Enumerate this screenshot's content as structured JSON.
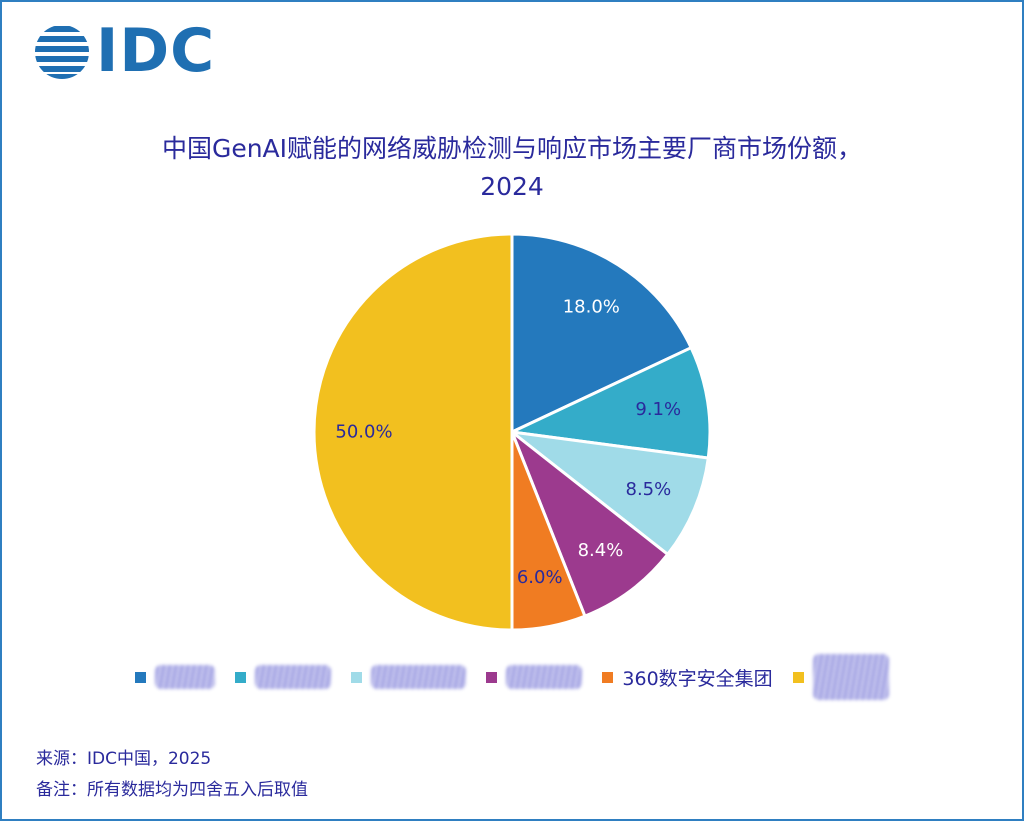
{
  "logo": {
    "text": "IDC",
    "icon": "globe-logo-icon",
    "color": "#1f6fb2"
  },
  "title": {
    "line1": "中国GenAI赋能的网络威胁检测与响应市场主要厂商市场份额，",
    "line2": "2024"
  },
  "chart_data": {
    "type": "pie",
    "title": "中国GenAI赋能的网络威胁检测与响应市场主要厂商市场份额，2024",
    "slices": [
      {
        "name": "奇安信",
        "value": 18.0,
        "label": "18.0%",
        "color": "#2479bd",
        "label_color": "#ffffff",
        "redacted": true
      },
      {
        "name": "绿盟科技",
        "value": 9.1,
        "label": "9.1%",
        "color": "#34acc9",
        "label_color": "#2a2a9c",
        "redacted": true
      },
      {
        "name": "深信服科技",
        "value": 8.5,
        "label": "8.5%",
        "color": "#a0dbe8",
        "label_color": "#2a2a9c",
        "redacted": true
      },
      {
        "name": "安恒信息",
        "value": 8.4,
        "label": "8.4%",
        "color": "#9c3a8e",
        "label_color": "#ffffff",
        "redacted": true
      },
      {
        "name": "360数字安全集团",
        "value": 6.0,
        "label": "6.0%",
        "color": "#f07c22",
        "label_color": "#2a2a9c",
        "redacted": false
      },
      {
        "name": "其他",
        "value": 50.0,
        "label": "50.0%",
        "color": "#f2c01f",
        "label_color": "#2a2a9c",
        "redacted": true
      }
    ],
    "legend_position": "bottom",
    "start_angle": "12 o'clock",
    "direction": "clockwise"
  },
  "footer": {
    "source": "来源：IDC中国，2025",
    "remark": "备注：所有数据均为四舍五入后取值"
  }
}
